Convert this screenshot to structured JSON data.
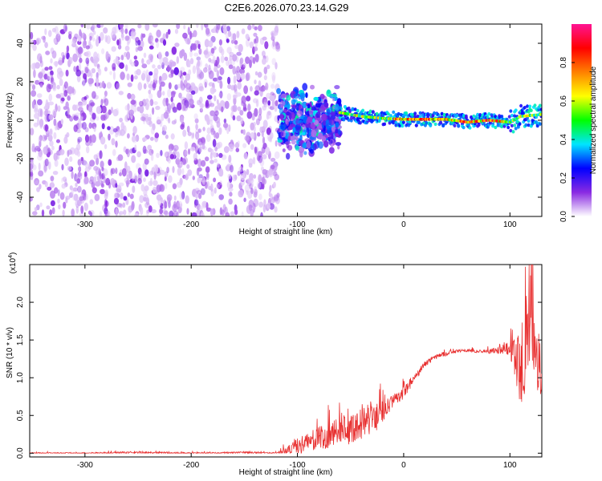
{
  "title": "C2E6.2026.070.23.14.G29",
  "chart_data": [
    {
      "type": "heatmap",
      "xlabel": "Height of straight line (km)",
      "ylabel": "Frequency (Hz)",
      "xlim": [
        -352,
        130
      ],
      "ylim": [
        -50,
        50
      ],
      "xticks": [
        -300,
        -200,
        -100,
        0,
        100
      ],
      "yticks": [
        -40,
        -20,
        0,
        20,
        40
      ],
      "grid": false,
      "noise_region_x": [
        -352,
        -118
      ],
      "transition_region_x": [
        -118,
        -60
      ],
      "signal_line": {
        "x": [
          -60,
          -40,
          -20,
          0,
          20,
          40,
          60,
          80,
          100,
          110,
          130
        ],
        "freq": [
          4,
          2,
          1,
          0.5,
          0.5,
          0.5,
          -1,
          0,
          -1,
          2,
          3
        ]
      },
      "colorbar": {
        "label": "Normalized spectral amplitude",
        "range": [
          0,
          1
        ],
        "ticks": [
          0.0,
          0.2,
          0.4,
          0.6,
          0.8
        ],
        "tick_labels": [
          "0.0",
          "0.2",
          "0.4",
          "0.6",
          "0.8"
        ],
        "colors": [
          "#ffffff",
          "#8a2be2",
          "#0000ff",
          "#00e5ff",
          "#00ff00",
          "#ffff00",
          "#ff8000",
          "#ff0000",
          "#ff1493"
        ]
      }
    },
    {
      "type": "line",
      "xlabel": "Height of straight line (km)",
      "ylabel": "SNR (10 * v/v)",
      "ylabel_multiplier_base": "(x10",
      "ylabel_multiplier_exp": "4",
      "ylabel_multiplier_close": ")",
      "xlim": [
        -352,
        130
      ],
      "ylim": [
        -0.05,
        2.5
      ],
      "xticks": [
        -300,
        -200,
        -100,
        0,
        100
      ],
      "yticks": [
        0.0,
        0.5,
        1.0,
        1.5,
        2.0
      ],
      "ytick_labels": [
        "0.0",
        "0.5",
        "1.0",
        "1.5",
        "2.0"
      ],
      "color": "#e83030",
      "grid": false,
      "series": [
        {
          "x": [
            -352,
            -300,
            -250,
            -200,
            -150,
            -120,
            -105,
            -100,
            -90,
            -80,
            -70,
            -60,
            -50,
            -40,
            -30,
            -20,
            -10,
            0,
            10,
            20,
            30,
            40,
            50,
            60,
            70,
            80,
            90,
            100,
            105,
            110,
            115,
            120,
            125,
            130
          ],
          "y": [
            0.0,
            0.0,
            0.01,
            0.0,
            0.01,
            0.0,
            0.05,
            0.1,
            0.15,
            0.2,
            0.25,
            0.3,
            0.33,
            0.38,
            0.45,
            0.55,
            0.7,
            0.8,
            1.0,
            1.18,
            1.28,
            1.32,
            1.35,
            1.36,
            1.35,
            1.35,
            1.37,
            1.42,
            1.3,
            1.1,
            1.5,
            1.8,
            1.2,
            1.1
          ],
          "spread": [
            0.01,
            0.01,
            0.015,
            0.01,
            0.01,
            0.01,
            0.08,
            0.12,
            0.12,
            0.15,
            0.18,
            0.18,
            0.22,
            0.2,
            0.25,
            0.15,
            0.08,
            0.08,
            0.06,
            0.04,
            0.03,
            0.03,
            0.02,
            0.02,
            0.02,
            0.03,
            0.05,
            0.12,
            0.35,
            0.5,
            0.7,
            0.6,
            0.45,
            0.4
          ]
        }
      ]
    }
  ]
}
